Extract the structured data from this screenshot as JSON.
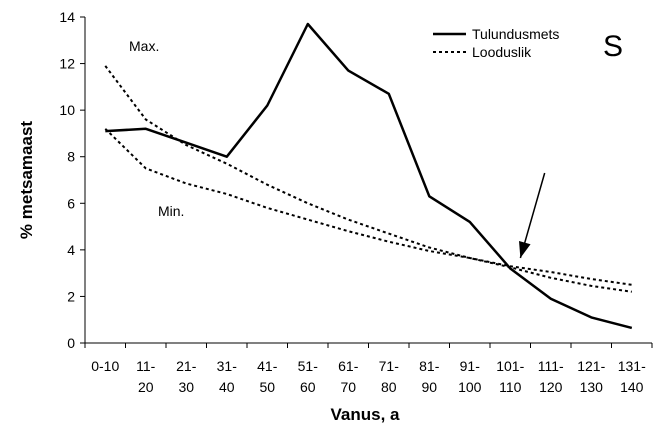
{
  "chart_data": {
    "type": "line",
    "panel_label": "S",
    "xlabel": "Vanus, a",
    "ylabel": "% metsamaast",
    "ylim": [
      0,
      14
    ],
    "yticks": [
      0,
      2,
      4,
      6,
      8,
      10,
      12,
      14
    ],
    "categories": [
      [
        "0-10",
        ""
      ],
      [
        "11-",
        "20"
      ],
      [
        "21-",
        "30"
      ],
      [
        "31-",
        "40"
      ],
      [
        "41-",
        "50"
      ],
      [
        "51-",
        "60"
      ],
      [
        "61-",
        "70"
      ],
      [
        "71-",
        "80"
      ],
      [
        "81-",
        "90"
      ],
      [
        "91-",
        "100"
      ],
      [
        "101-",
        "110"
      ],
      [
        "111-",
        "120"
      ],
      [
        "121-",
        "130"
      ],
      [
        "131-",
        "140"
      ]
    ],
    "series": [
      {
        "name": "Tulundusmets",
        "style": "solid",
        "values": [
          9.1,
          9.2,
          8.6,
          8.0,
          10.2,
          13.7,
          11.7,
          10.7,
          6.3,
          5.2,
          3.2,
          1.9,
          1.1,
          0.65
        ]
      },
      {
        "name": "Looduslik",
        "style": "dotted",
        "bands": [
          {
            "label": "Max.",
            "values": [
              11.9,
              9.6,
              8.5,
              7.7,
              6.8,
              6.0,
              5.3,
              4.7,
              4.1,
              3.65,
              3.3,
              3.05,
              2.75,
              2.5
            ]
          },
          {
            "label": "Min.",
            "values": [
              9.2,
              7.5,
              6.85,
              6.4,
              5.8,
              5.3,
              4.8,
              4.35,
              3.95,
              3.65,
              3.25,
              2.8,
              2.45,
              2.2
            ]
          }
        ]
      }
    ],
    "arrow": {
      "from": [
        10.85,
        7.3
      ],
      "to": [
        10.25,
        3.65
      ]
    },
    "colors": {
      "line": "#000000",
      "background": "#ffffff"
    }
  }
}
